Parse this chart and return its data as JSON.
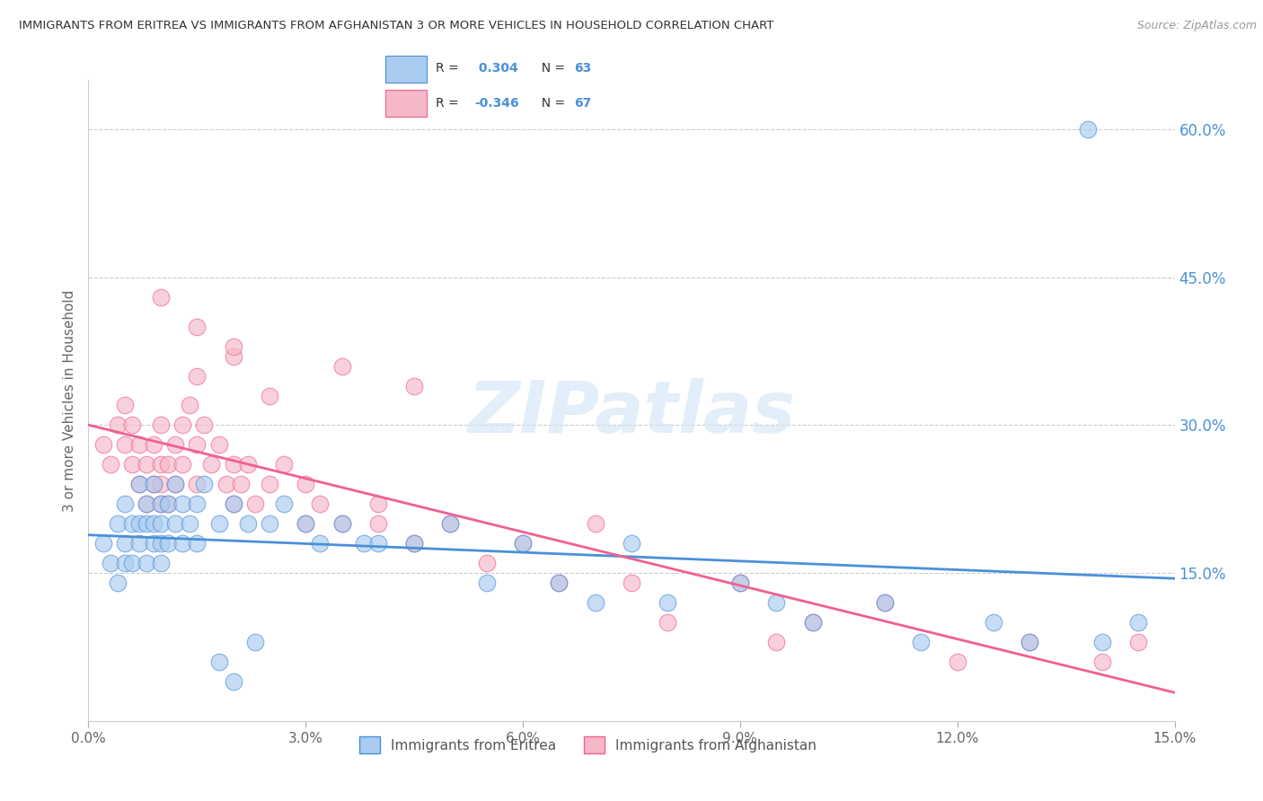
{
  "title": "IMMIGRANTS FROM ERITREA VS IMMIGRANTS FROM AFGHANISTAN 3 OR MORE VEHICLES IN HOUSEHOLD CORRELATION CHART",
  "source": "Source: ZipAtlas.com",
  "ylabel": "3 or more Vehicles in Household",
  "xlim": [
    0.0,
    15.0
  ],
  "ylim": [
    0.0,
    65.0
  ],
  "right_yticks": [
    15.0,
    30.0,
    45.0,
    60.0
  ],
  "right_yticklabels": [
    "15.0%",
    "30.0%",
    "45.0%",
    "60.0%"
  ],
  "xticks": [
    0.0,
    3.0,
    6.0,
    9.0,
    12.0,
    15.0
  ],
  "xticklabels": [
    "0.0%",
    "3.0%",
    "6.0%",
    "9.0%",
    "12.0%",
    "15.0%"
  ],
  "eritrea_R": 0.304,
  "eritrea_N": 63,
  "afghanistan_R": -0.346,
  "afghanistan_N": 67,
  "eritrea_color": "#aaccf0",
  "afghanistan_color": "#f5b8c8",
  "eritrea_line_color": "#4a90d9",
  "afghanistan_line_color": "#f06090",
  "watermark": "ZIPatlas",
  "watermark_color": "#c8d8f0",
  "legend_eritrea_label": "Immigrants from Eritrea",
  "legend_afghanistan_label": "Immigrants from Afghanistan",
  "eritrea_x": [
    0.2,
    0.3,
    0.4,
    0.4,
    0.5,
    0.5,
    0.5,
    0.6,
    0.6,
    0.7,
    0.7,
    0.7,
    0.8,
    0.8,
    0.8,
    0.9,
    0.9,
    0.9,
    1.0,
    1.0,
    1.0,
    1.0,
    1.1,
    1.1,
    1.2,
    1.2,
    1.3,
    1.3,
    1.4,
    1.5,
    1.5,
    1.6,
    1.8,
    2.0,
    2.2,
    2.5,
    2.7,
    3.0,
    3.2,
    3.5,
    3.8,
    4.0,
    4.5,
    5.0,
    5.5,
    6.0,
    6.5,
    7.0,
    7.5,
    8.0,
    9.0,
    9.5,
    10.0,
    11.0,
    11.5,
    12.5,
    13.0,
    14.0,
    14.5,
    1.8,
    2.0,
    2.3,
    13.8
  ],
  "eritrea_y": [
    18.0,
    16.0,
    20.0,
    14.0,
    22.0,
    18.0,
    16.0,
    20.0,
    16.0,
    24.0,
    20.0,
    18.0,
    22.0,
    20.0,
    16.0,
    24.0,
    20.0,
    18.0,
    22.0,
    20.0,
    18.0,
    16.0,
    22.0,
    18.0,
    24.0,
    20.0,
    22.0,
    18.0,
    20.0,
    22.0,
    18.0,
    24.0,
    20.0,
    22.0,
    20.0,
    20.0,
    22.0,
    20.0,
    18.0,
    20.0,
    18.0,
    18.0,
    18.0,
    20.0,
    14.0,
    18.0,
    14.0,
    12.0,
    18.0,
    12.0,
    14.0,
    12.0,
    10.0,
    12.0,
    8.0,
    10.0,
    8.0,
    8.0,
    10.0,
    6.0,
    4.0,
    8.0,
    60.0
  ],
  "afghanistan_x": [
    0.2,
    0.3,
    0.4,
    0.5,
    0.5,
    0.6,
    0.6,
    0.7,
    0.7,
    0.8,
    0.8,
    0.9,
    0.9,
    1.0,
    1.0,
    1.0,
    1.0,
    1.1,
    1.1,
    1.2,
    1.2,
    1.3,
    1.3,
    1.4,
    1.5,
    1.5,
    1.6,
    1.7,
    1.8,
    1.9,
    2.0,
    2.0,
    2.1,
    2.2,
    2.3,
    2.5,
    2.7,
    3.0,
    3.0,
    3.2,
    3.5,
    4.0,
    4.0,
    4.5,
    5.0,
    5.5,
    6.0,
    6.5,
    7.0,
    7.5,
    8.0,
    9.0,
    9.5,
    10.0,
    11.0,
    12.0,
    13.0,
    14.0,
    14.5,
    1.5,
    2.0,
    2.5,
    3.5,
    4.5,
    1.0,
    1.5,
    2.0
  ],
  "afghanistan_y": [
    28.0,
    26.0,
    30.0,
    32.0,
    28.0,
    30.0,
    26.0,
    28.0,
    24.0,
    26.0,
    22.0,
    28.0,
    24.0,
    30.0,
    26.0,
    24.0,
    22.0,
    26.0,
    22.0,
    28.0,
    24.0,
    26.0,
    30.0,
    32.0,
    28.0,
    24.0,
    30.0,
    26.0,
    28.0,
    24.0,
    26.0,
    22.0,
    24.0,
    26.0,
    22.0,
    24.0,
    26.0,
    24.0,
    20.0,
    22.0,
    20.0,
    20.0,
    22.0,
    18.0,
    20.0,
    16.0,
    18.0,
    14.0,
    20.0,
    14.0,
    10.0,
    14.0,
    8.0,
    10.0,
    12.0,
    6.0,
    8.0,
    6.0,
    8.0,
    35.0,
    37.0,
    33.0,
    36.0,
    34.0,
    43.0,
    40.0,
    38.0
  ]
}
